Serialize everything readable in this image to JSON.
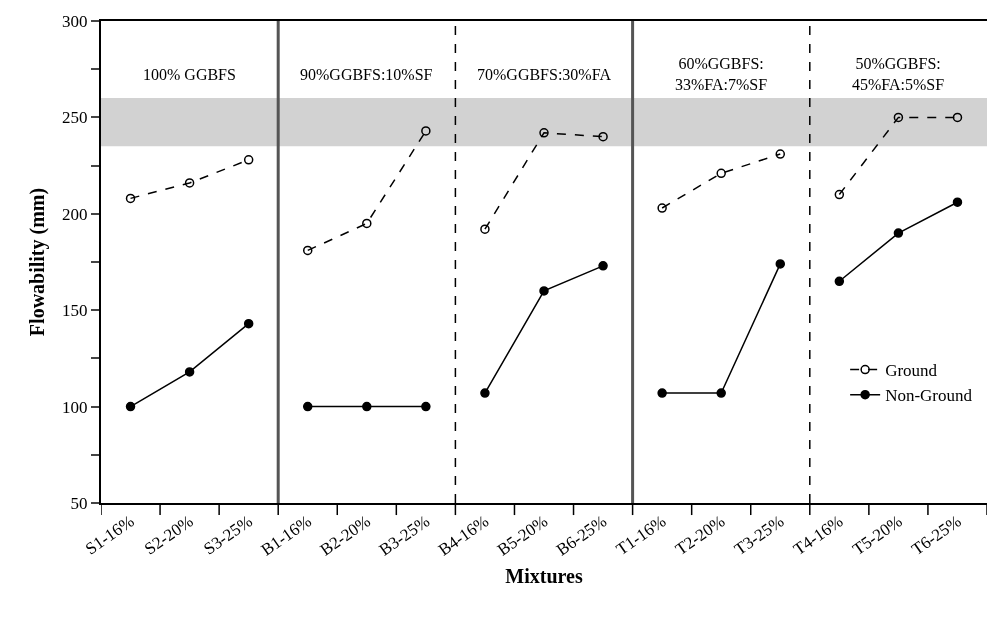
{
  "chart_data": {
    "type": "line",
    "xlabel": "Mixtures",
    "ylabel": "Flowability (mm)",
    "categories": [
      "S1-16%",
      "S2-20%",
      "S3-25%",
      "B1-16%",
      "B2-20%",
      "B3-25%",
      "B4-16%",
      "B5-20%",
      "B6-25%",
      "T1-16%",
      "T2-20%",
      "T3-25%",
      "T4-16%",
      "T5-20%",
      "T6-25%"
    ],
    "series": [
      {
        "name": "Ground",
        "color": "#000000",
        "line_style": "dashed",
        "marker": "circle-open",
        "values": [
          208,
          216,
          228,
          181,
          195,
          243,
          192,
          242,
          240,
          203,
          221,
          231,
          210,
          250,
          250
        ]
      },
      {
        "name": "Non-Ground",
        "color": "#000000",
        "line_style": "solid",
        "marker": "circle",
        "values": [
          100,
          118,
          143,
          100,
          100,
          100,
          107,
          160,
          173,
          107,
          107,
          174,
          165,
          190,
          206
        ]
      }
    ],
    "ylim": [
      50,
      300
    ],
    "yticks": [
      50,
      {
        "value": 75,
        "label": null
      },
      100,
      {
        "value": 125,
        "label": null
      },
      150,
      {
        "value": 175,
        "label": null
      },
      200,
      {
        "value": 225,
        "label": null
      },
      250,
      {
        "value": 275,
        "label": null
      },
      300
    ],
    "bands": [
      {
        "axis": "y",
        "from": 235,
        "to": 260,
        "color": "#b4b4b4"
      }
    ],
    "annotations": [
      "100% GGBFS",
      "90%GGBFS:10%SF",
      "70%GGBFS:30%FA",
      "60%GGBFS:\n33%FA:7%SF",
      "50%GGBFS:\n45%FA:5%SF"
    ],
    "grid": false,
    "legend": "right"
  }
}
